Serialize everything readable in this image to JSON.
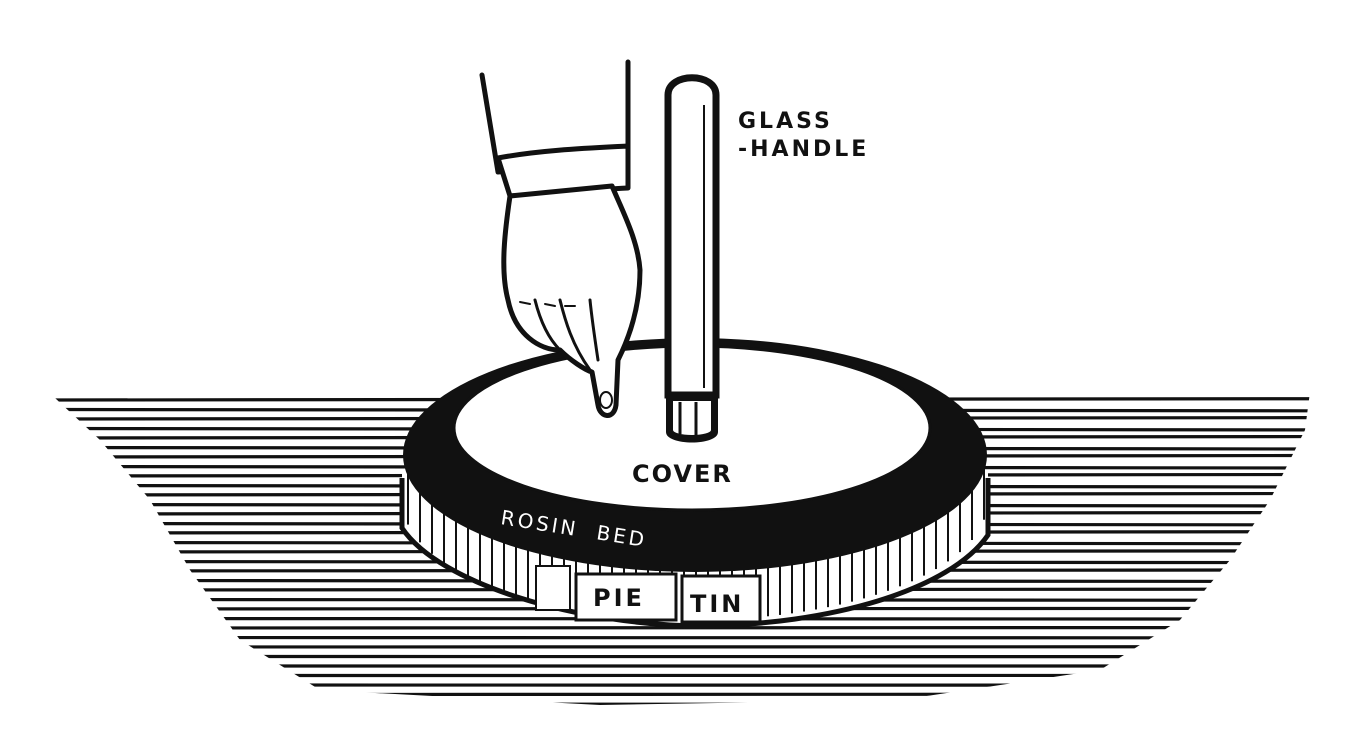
{
  "colors": {
    "ink": "#111111",
    "paper": "#ffffff"
  },
  "labels": {
    "glass_line1": "GLASS",
    "glass_line2": "-HANDLE",
    "cover": "COVER",
    "rosin_bed": "ROSIN  BED",
    "pie": "PIE",
    "tin": "TIN"
  }
}
